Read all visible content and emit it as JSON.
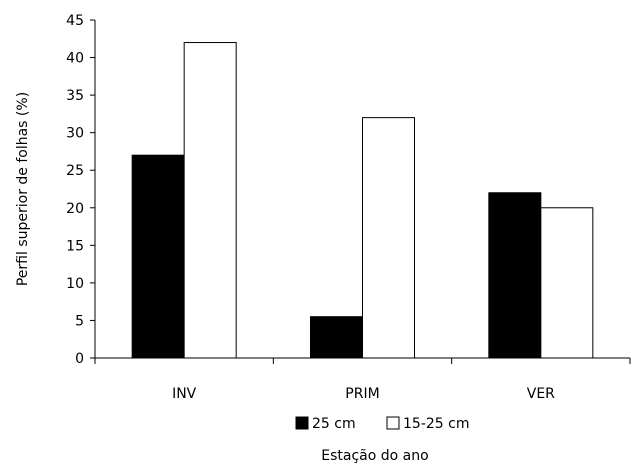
{
  "chart_data": {
    "type": "bar",
    "categories": [
      "INV",
      "PRIM",
      "VER"
    ],
    "series": [
      {
        "name": "25 cm",
        "values": [
          27,
          5.5,
          22
        ],
        "color": "#000000"
      },
      {
        "name": "15-25 cm",
        "values": [
          42,
          32,
          20
        ],
        "color": "#ffffff"
      }
    ],
    "xlabel": "Estação do ano",
    "ylabel": "Perfil superior de folhas (%)",
    "ylim": [
      0,
      45
    ],
    "yticks": [
      0,
      5,
      10,
      15,
      20,
      25,
      30,
      35,
      40,
      45
    ],
    "yticks_labels": [
      "0",
      "5",
      "10",
      "15",
      "20",
      "25",
      "30",
      "35",
      "40",
      "45"
    ],
    "grid": false,
    "legend": "bottom"
  }
}
